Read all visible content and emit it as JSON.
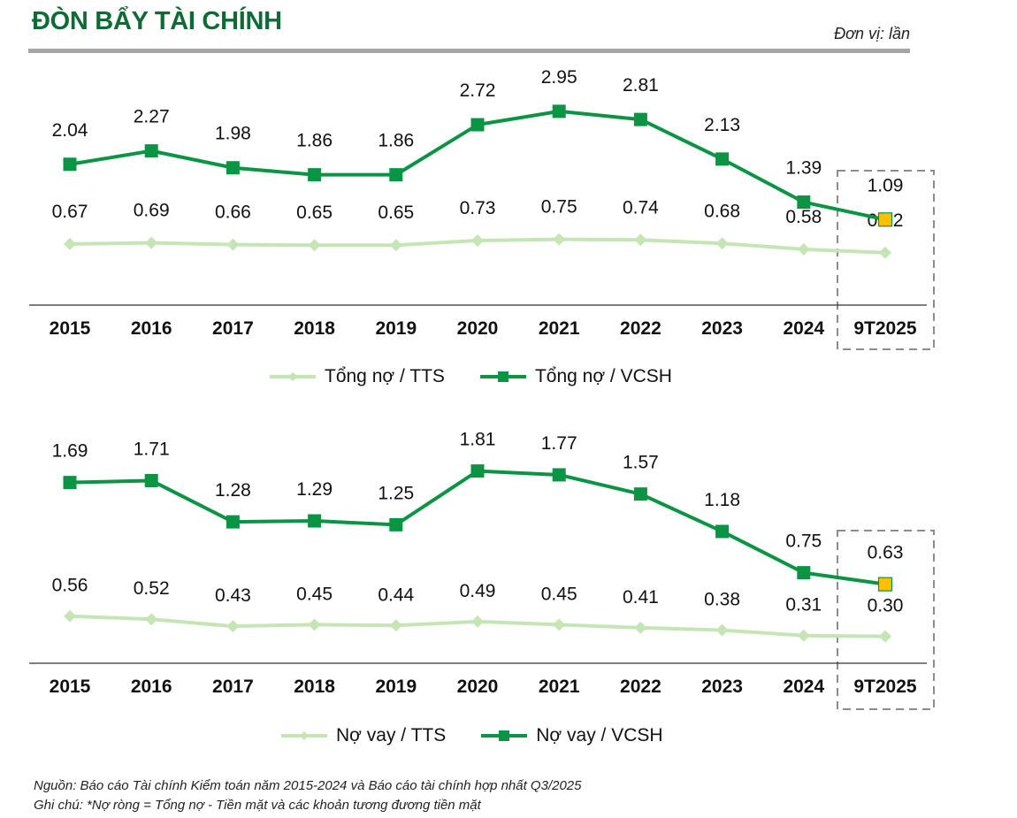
{
  "header": {
    "title": "ĐÒN BẨY TÀI CHÍNH",
    "unit": "Đơn vị: lần"
  },
  "colors": {
    "title": "#0d6b36",
    "dark_series": "#0a9444",
    "light_series": "#c6e5b5",
    "highlight_marker": "#ffc000",
    "rule": "#a6a6a6",
    "highlight_box": "#8c8c8c"
  },
  "chart_data": [
    {
      "type": "line",
      "categories": [
        "2015",
        "2016",
        "2017",
        "2018",
        "2019",
        "2020",
        "2021",
        "2022",
        "2023",
        "2024",
        "9T2025"
      ],
      "series": [
        {
          "name": "Tổng nợ / TTS",
          "marker": "diamond",
          "values": [
            0.67,
            0.69,
            0.66,
            0.65,
            0.65,
            0.73,
            0.75,
            0.74,
            0.68,
            0.58,
            0.52
          ],
          "labels": [
            "0.67",
            "0.69",
            "0.66",
            "0.65",
            "0.65",
            "0.73",
            "0.75",
            "0.74",
            "0.68",
            "0.58",
            "0.52"
          ]
        },
        {
          "name": "Tổng nợ / VCSH",
          "marker": "square",
          "values": [
            2.04,
            2.27,
            1.98,
            1.86,
            1.86,
            2.72,
            2.95,
            2.81,
            2.13,
            1.39,
            1.09
          ],
          "labels": [
            "2.04",
            "2.27",
            "1.98",
            "1.86",
            "1.86",
            "2.72",
            "2.95",
            "2.81",
            "2.13",
            "1.39",
            "1.09"
          ]
        }
      ],
      "highlighted_category": "9T2025",
      "title": "",
      "xlabel": "",
      "ylabel": "",
      "ylim": [
        0,
        3.2
      ],
      "grid": false,
      "legend": "bottom"
    },
    {
      "type": "line",
      "categories": [
        "2015",
        "2016",
        "2017",
        "2018",
        "2019",
        "2020",
        "2021",
        "2022",
        "2023",
        "2024",
        "9T2025"
      ],
      "series": [
        {
          "name": "Nợ vay / TTS",
          "marker": "diamond",
          "values": [
            0.56,
            0.52,
            0.43,
            0.45,
            0.44,
            0.49,
            0.45,
            0.41,
            0.38,
            0.31,
            0.3
          ],
          "labels": [
            "0.56",
            "0.52",
            "0.43",
            "0.45",
            "0.44",
            "0.49",
            "0.45",
            "0.41",
            "0.38",
            "0.31",
            "0.30"
          ]
        },
        {
          "name": "Nợ vay / VCSH",
          "marker": "square",
          "values": [
            1.69,
            1.71,
            1.28,
            1.29,
            1.25,
            1.81,
            1.77,
            1.57,
            1.18,
            0.75,
            0.63
          ],
          "labels": [
            "1.69",
            "1.71",
            "1.28",
            "1.29",
            "1.25",
            "1.81",
            "1.77",
            "1.57",
            "1.18",
            "0.75",
            "0.63"
          ]
        }
      ],
      "highlighted_category": "9T2025",
      "title": "",
      "xlabel": "",
      "ylabel": "",
      "ylim": [
        0,
        2.0
      ],
      "grid": false,
      "legend": "bottom"
    }
  ],
  "footer": {
    "source": "Nguồn: Báo cáo Tài chính Kiểm toán năm 2015-2024 và Báo cáo tài chính hợp nhất Q3/2025",
    "note": "Ghi chú: *Nợ ròng = Tổng nợ - Tiền mặt và các khoản tương đương tiền mặt"
  }
}
